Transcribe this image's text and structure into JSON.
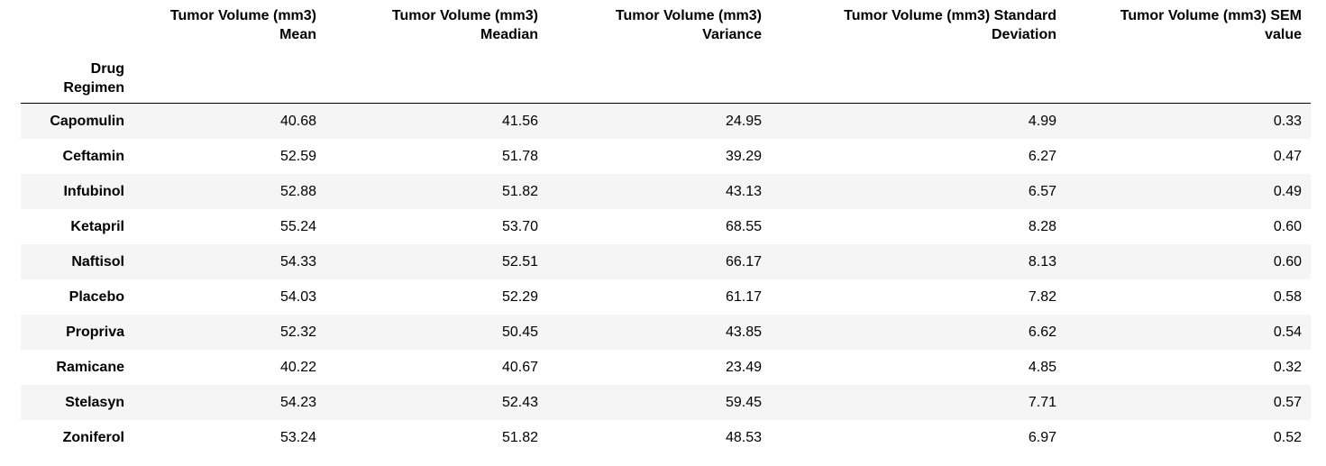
{
  "table": {
    "index_name": "Drug\nRegimen",
    "columns": [
      "Tumor Volume (mm3)\nMean",
      "Tumor Volume (mm3)\nMeadian",
      "Tumor Volume (mm3)\nVariance",
      "Tumor Volume (mm3) Standard\nDeviation",
      "Tumor Volume (mm3) SEM\nvalue"
    ],
    "rows": [
      {
        "label": "Capomulin",
        "values": [
          "40.68",
          "41.56",
          "24.95",
          "4.99",
          "0.33"
        ]
      },
      {
        "label": "Ceftamin",
        "values": [
          "52.59",
          "51.78",
          "39.29",
          "6.27",
          "0.47"
        ]
      },
      {
        "label": "Infubinol",
        "values": [
          "52.88",
          "51.82",
          "43.13",
          "6.57",
          "0.49"
        ]
      },
      {
        "label": "Ketapril",
        "values": [
          "55.24",
          "53.70",
          "68.55",
          "8.28",
          "0.60"
        ]
      },
      {
        "label": "Naftisol",
        "values": [
          "54.33",
          "52.51",
          "66.17",
          "8.13",
          "0.60"
        ]
      },
      {
        "label": "Placebo",
        "values": [
          "54.03",
          "52.29",
          "61.17",
          "7.82",
          "0.58"
        ]
      },
      {
        "label": "Propriva",
        "values": [
          "52.32",
          "50.45",
          "43.85",
          "6.62",
          "0.54"
        ]
      },
      {
        "label": "Ramicane",
        "values": [
          "40.22",
          "40.67",
          "23.49",
          "4.85",
          "0.32"
        ]
      },
      {
        "label": "Stelasyn",
        "values": [
          "54.23",
          "52.43",
          "59.45",
          "7.71",
          "0.57"
        ]
      },
      {
        "label": "Zoniferol",
        "values": [
          "53.24",
          "51.82",
          "48.53",
          "6.97",
          "0.52"
        ]
      }
    ]
  }
}
